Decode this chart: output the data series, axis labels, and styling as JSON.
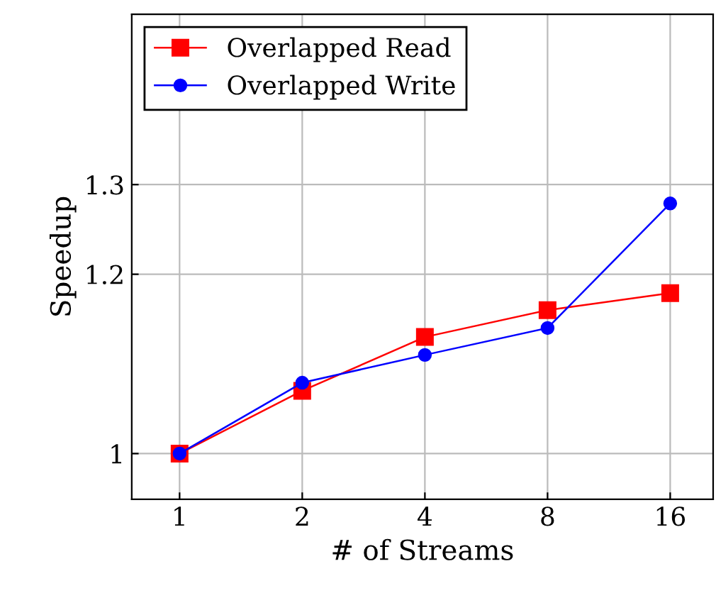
{
  "chart_data": {
    "type": "line",
    "xlabel": "# of Streams",
    "ylabel": "Speedup",
    "categories": [
      "1",
      "2",
      "4",
      "8",
      "16"
    ],
    "series": [
      {
        "name": "Overlapped Read",
        "color": "#ff0000",
        "marker": "square",
        "values": [
          1.0,
          1.07,
          1.13,
          1.16,
          1.179
        ]
      },
      {
        "name": "Overlapped Write",
        "color": "#0000ff",
        "marker": "circle",
        "values": [
          1.0,
          1.079,
          1.11,
          1.14,
          1.279
        ]
      }
    ],
    "ylim": [
      0.949,
      1.49
    ],
    "yticks": [
      1,
      1.2,
      1.3
    ],
    "grid": true,
    "legend": "top left",
    "line_style": "solid"
  }
}
